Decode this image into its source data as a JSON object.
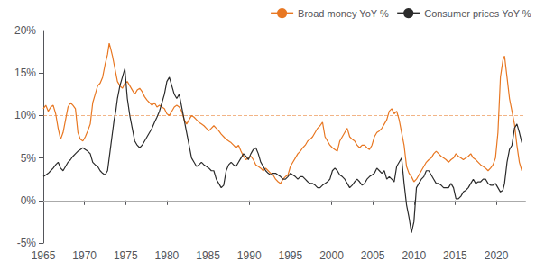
{
  "chart_data": {
    "type": "line",
    "x": [
      1965.0,
      1965.3,
      1965.6,
      1965.9,
      1966.2,
      1966.5,
      1966.8,
      1967.1,
      1967.4,
      1967.7,
      1968.0,
      1968.3,
      1968.6,
      1968.9,
      1969.2,
      1969.5,
      1969.8,
      1970.1,
      1970.4,
      1970.7,
      1971.0,
      1971.3,
      1971.6,
      1971.9,
      1972.2,
      1972.5,
      1972.8,
      1973.0,
      1973.2,
      1973.4,
      1973.6,
      1973.8,
      1974.0,
      1974.3,
      1974.6,
      1974.9,
      1975.2,
      1975.5,
      1975.8,
      1976.1,
      1976.4,
      1976.7,
      1977.0,
      1977.3,
      1977.6,
      1977.9,
      1978.2,
      1978.5,
      1978.8,
      1979.1,
      1979.4,
      1979.7,
      1980.0,
      1980.3,
      1980.6,
      1980.9,
      1981.2,
      1981.5,
      1981.8,
      1982.1,
      1982.4,
      1982.7,
      1983.0,
      1983.3,
      1983.6,
      1983.9,
      1984.2,
      1984.5,
      1984.8,
      1985.1,
      1985.4,
      1985.7,
      1986.0,
      1986.3,
      1986.6,
      1986.9,
      1987.2,
      1987.5,
      1987.8,
      1988.1,
      1988.4,
      1988.7,
      1989.0,
      1989.3,
      1989.6,
      1989.9,
      1990.2,
      1990.5,
      1990.8,
      1991.1,
      1991.4,
      1991.7,
      1992.0,
      1992.3,
      1992.6,
      1992.9,
      1993.2,
      1993.5,
      1993.8,
      1994.1,
      1994.4,
      1994.7,
      1995.0,
      1995.3,
      1995.6,
      1995.9,
      1996.2,
      1996.5,
      1996.8,
      1997.1,
      1997.4,
      1997.7,
      1998.0,
      1998.3,
      1998.6,
      1998.9,
      1999.2,
      1999.5,
      1999.8,
      2000.1,
      2000.4,
      2000.7,
      2001.0,
      2001.3,
      2001.6,
      2001.9,
      2002.2,
      2002.5,
      2002.8,
      2003.1,
      2003.4,
      2003.7,
      2004.0,
      2004.3,
      2004.6,
      2004.9,
      2005.2,
      2005.5,
      2005.8,
      2006.1,
      2006.4,
      2006.7,
      2007.0,
      2007.3,
      2007.6,
      2007.9,
      2008.2,
      2008.5,
      2008.8,
      2009.1,
      2009.4,
      2009.7,
      2010.0,
      2010.3,
      2010.6,
      2010.9,
      2011.2,
      2011.5,
      2011.8,
      2012.1,
      2012.4,
      2012.7,
      2013.0,
      2013.3,
      2013.6,
      2013.9,
      2014.2,
      2014.5,
      2014.8,
      2015.1,
      2015.4,
      2015.7,
      2016.0,
      2016.3,
      2016.6,
      2016.9,
      2017.2,
      2017.5,
      2017.8,
      2018.1,
      2018.4,
      2018.7,
      2019.0,
      2019.3,
      2019.6,
      2019.9,
      2020.2,
      2020.5,
      2020.8,
      2021.0,
      2021.3,
      2021.6,
      2021.9,
      2022.2,
      2022.5,
      2022.8,
      2023.1
    ],
    "series": [
      {
        "name": "Broad money YoY %",
        "color": "#E87722",
        "values": [
          10.8,
          11.2,
          10.5,
          11.0,
          11.2,
          10.2,
          8.5,
          7.2,
          8.0,
          9.5,
          11.0,
          11.5,
          11.2,
          10.8,
          8.0,
          7.2,
          7.0,
          7.5,
          8.2,
          9.0,
          11.5,
          12.5,
          13.5,
          13.8,
          14.5,
          16.0,
          17.2,
          18.5,
          17.8,
          17.0,
          16.0,
          15.0,
          14.0,
          13.5,
          13.2,
          13.8,
          14.0,
          13.5,
          13.0,
          12.5,
          13.0,
          13.2,
          12.8,
          12.2,
          11.8,
          11.5,
          11.2,
          11.5,
          11.0,
          11.2,
          11.0,
          10.8,
          10.2,
          10.0,
          10.5,
          11.0,
          11.2,
          11.0,
          10.5,
          9.5,
          9.0,
          9.5,
          10.0,
          9.8,
          9.5,
          9.2,
          9.0,
          8.8,
          8.5,
          8.2,
          8.5,
          8.8,
          8.5,
          8.2,
          7.8,
          7.5,
          7.2,
          7.0,
          6.8,
          6.5,
          6.2,
          6.5,
          5.8,
          5.2,
          4.8,
          5.0,
          5.2,
          4.8,
          4.2,
          4.0,
          3.8,
          3.5,
          3.8,
          3.5,
          3.2,
          3.0,
          2.5,
          2.2,
          2.0,
          2.5,
          2.8,
          3.0,
          4.0,
          4.5,
          5.0,
          5.5,
          5.8,
          6.2,
          6.5,
          7.0,
          7.2,
          7.5,
          8.0,
          8.5,
          8.8,
          9.2,
          7.5,
          7.0,
          6.5,
          6.2,
          6.0,
          5.8,
          7.0,
          7.5,
          8.0,
          8.5,
          7.5,
          7.2,
          7.0,
          6.5,
          6.2,
          6.5,
          6.5,
          6.2,
          6.0,
          6.5,
          7.5,
          8.0,
          8.2,
          8.5,
          9.0,
          9.5,
          10.5,
          10.8,
          10.2,
          10.5,
          9.5,
          8.0,
          6.5,
          4.0,
          3.2,
          2.8,
          2.2,
          2.5,
          3.0,
          3.5,
          4.0,
          4.5,
          4.8,
          5.0,
          5.5,
          5.8,
          5.5,
          5.2,
          5.0,
          4.8,
          4.5,
          4.8,
          5.0,
          5.5,
          5.2,
          5.0,
          4.8,
          5.0,
          5.2,
          5.5,
          5.0,
          4.8,
          4.5,
          4.2,
          4.0,
          3.8,
          3.5,
          3.8,
          4.2,
          5.0,
          8.0,
          14.5,
          16.5,
          17.0,
          14.5,
          12.0,
          10.5,
          9.0,
          6.5,
          4.5,
          3.5
        ]
      },
      {
        "name": "Consumer prices YoY %",
        "color": "#2B2B2B",
        "values": [
          2.8,
          3.0,
          3.2,
          3.5,
          3.8,
          4.2,
          4.5,
          3.8,
          3.5,
          4.0,
          4.5,
          4.8,
          5.2,
          5.5,
          5.8,
          6.0,
          6.2,
          6.0,
          5.8,
          5.5,
          4.5,
          4.2,
          4.0,
          3.5,
          3.2,
          3.0,
          3.5,
          5.0,
          6.5,
          8.0,
          9.5,
          10.5,
          12.0,
          13.5,
          14.5,
          15.5,
          12.0,
          10.0,
          8.5,
          7.0,
          6.5,
          6.2,
          6.5,
          7.0,
          7.5,
          8.0,
          8.5,
          9.2,
          9.8,
          10.5,
          11.5,
          12.5,
          14.0,
          14.5,
          13.5,
          12.5,
          12.0,
          12.5,
          11.0,
          9.5,
          8.0,
          6.5,
          5.0,
          4.5,
          4.0,
          4.2,
          4.5,
          4.2,
          4.0,
          3.8,
          3.5,
          3.5,
          2.5,
          2.0,
          1.5,
          1.8,
          3.5,
          4.2,
          4.5,
          4.2,
          4.0,
          4.5,
          5.0,
          5.5,
          5.2,
          4.8,
          5.5,
          6.0,
          6.2,
          5.5,
          4.5,
          4.0,
          3.5,
          3.2,
          3.0,
          3.2,
          3.2,
          3.0,
          2.8,
          2.5,
          2.5,
          2.8,
          3.2,
          3.0,
          2.8,
          2.5,
          2.8,
          2.8,
          2.5,
          2.2,
          2.0,
          2.0,
          1.8,
          1.5,
          1.5,
          1.8,
          2.0,
          2.2,
          2.5,
          3.5,
          3.8,
          3.5,
          3.0,
          2.8,
          2.5,
          2.0,
          1.5,
          1.8,
          2.2,
          2.5,
          2.2,
          1.8,
          2.0,
          2.5,
          2.8,
          3.0,
          3.2,
          3.8,
          3.5,
          3.2,
          3.5,
          2.5,
          2.8,
          2.5,
          2.2,
          4.0,
          4.5,
          5.0,
          2.0,
          -0.5,
          -2.0,
          -3.8,
          -2.5,
          1.5,
          2.0,
          2.5,
          2.8,
          3.5,
          3.5,
          3.0,
          2.5,
          2.0,
          2.0,
          1.8,
          1.5,
          1.5,
          1.5,
          2.0,
          1.5,
          0.2,
          0.2,
          0.5,
          1.0,
          1.2,
          1.5,
          2.0,
          2.5,
          2.0,
          2.2,
          2.2,
          2.5,
          2.5,
          2.0,
          1.8,
          1.8,
          2.0,
          1.5,
          1.0,
          1.2,
          2.0,
          4.5,
          6.0,
          6.5,
          8.5,
          9.0,
          8.0,
          6.8
        ]
      }
    ],
    "hlines": [
      {
        "value": 10.0,
        "color": "#E87722",
        "line_style": "dashed"
      },
      {
        "value": 0,
        "color": "#AAAAAA",
        "line_style": "solid"
      }
    ],
    "xlim": [
      1965,
      2023.5
    ],
    "xticks": [
      1965,
      1970,
      1975,
      1980,
      1985,
      1990,
      1995,
      2000,
      2005,
      2010,
      2015,
      2020
    ],
    "ylim": [
      -5,
      20
    ],
    "yticks": [
      {
        "value": -5,
        "label": "-5%"
      },
      {
        "value": 0,
        "label": "0%"
      },
      {
        "value": 5,
        "label": "5%"
      },
      {
        "value": 10,
        "label": "10%"
      },
      {
        "value": 15,
        "label": "15%"
      },
      {
        "value": 20,
        "label": "20%"
      }
    ],
    "grid": false,
    "legend": "upper right"
  }
}
